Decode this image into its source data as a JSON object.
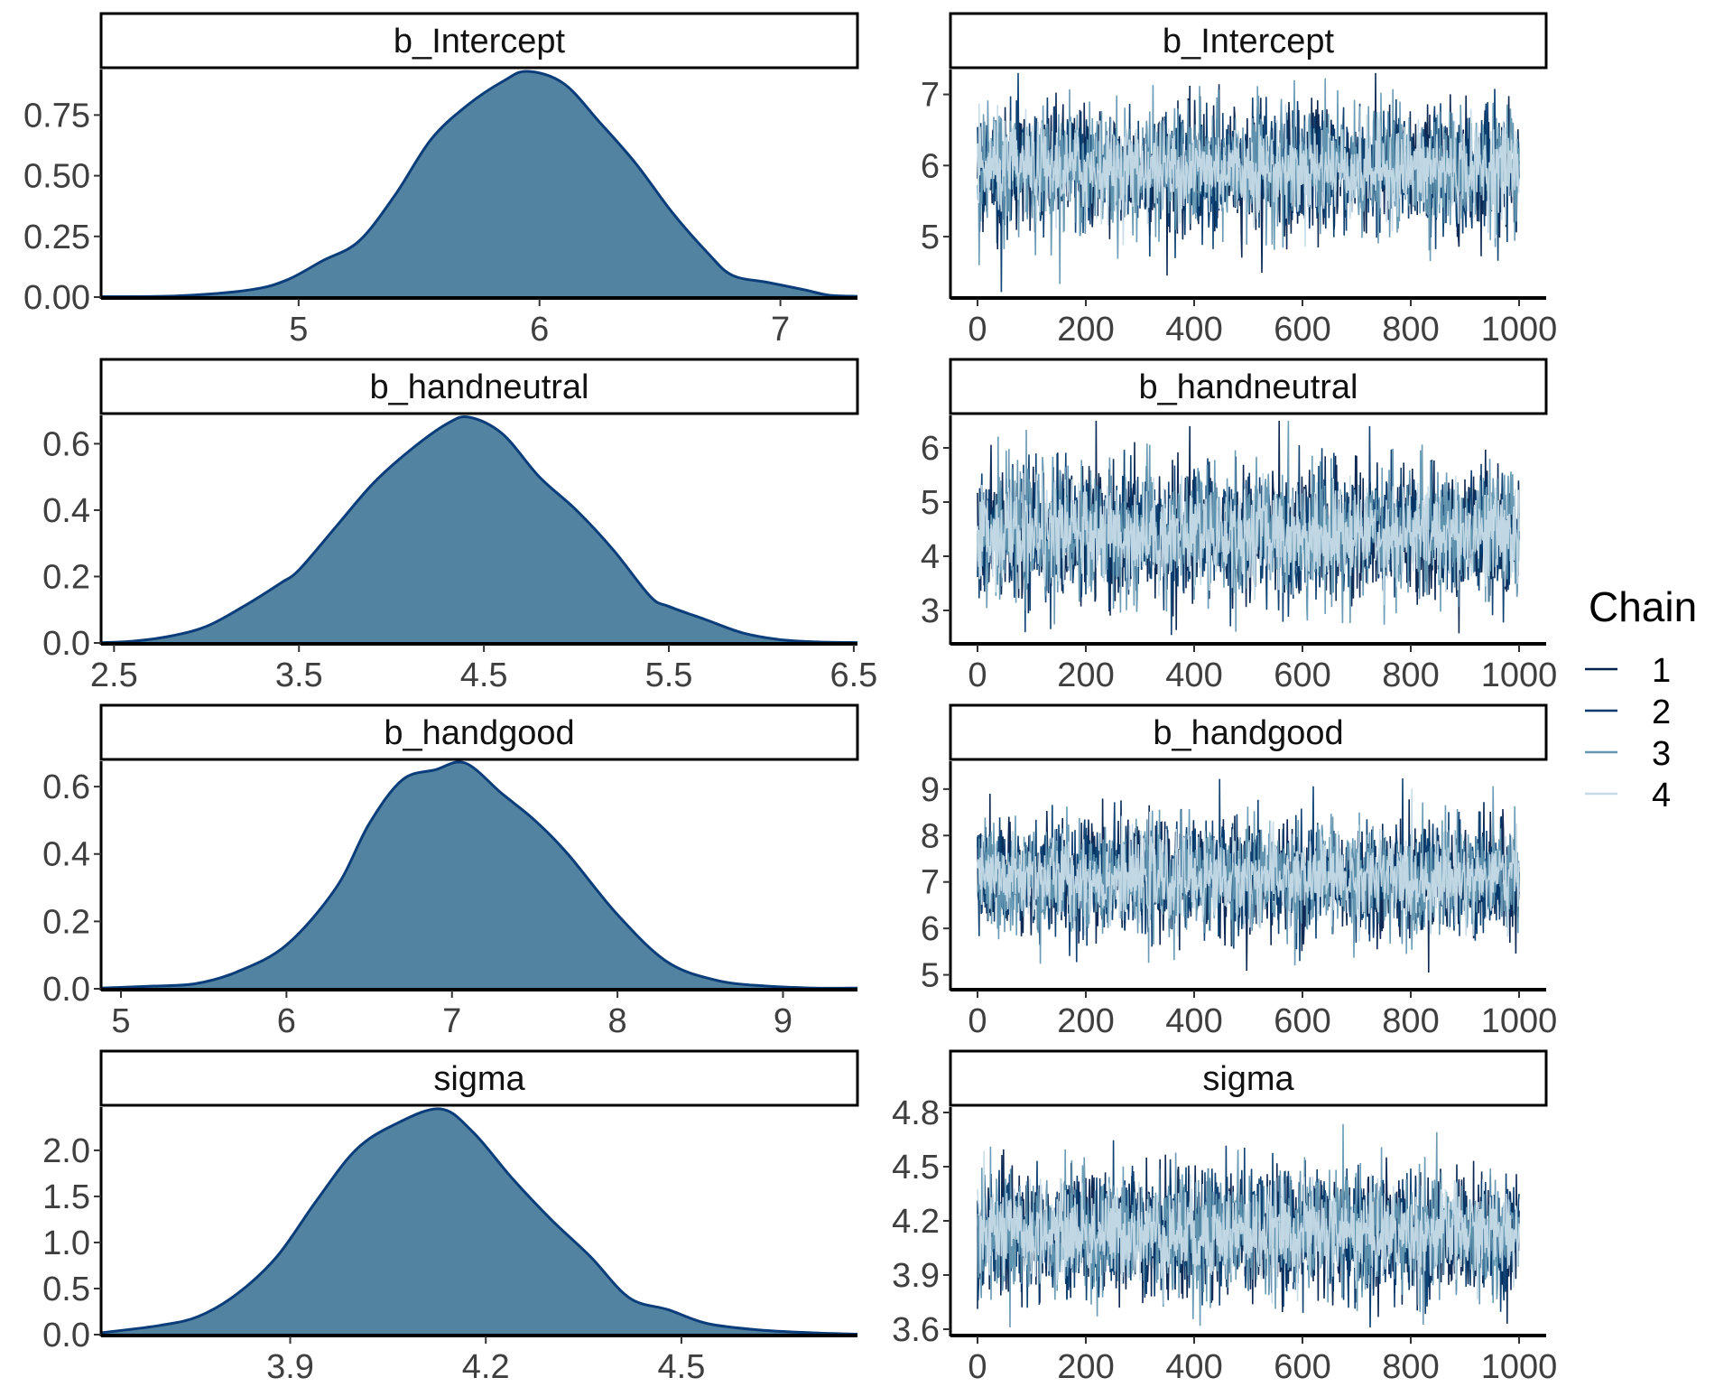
{
  "chart_data": {
    "type": "mcmc-diagnostics",
    "description": "Posterior density plots (left) and MCMC trace plots (right) for 4 parameters",
    "legend": {
      "title": "Chain",
      "placement": "right",
      "entries": [
        {
          "label": "1",
          "color": "#011f4b"
        },
        {
          "label": "2",
          "color": "#03396c"
        },
        {
          "label": "3",
          "color": "#6497b1"
        },
        {
          "label": "4",
          "color": "#c6dbe7"
        }
      ]
    },
    "density_fill": "#5283a1",
    "density_line": "#0b3d7a",
    "panels": [
      {
        "parameter": "b_Intercept",
        "density": {
          "xlim": [
            4.18,
            7.32
          ],
          "ylim": [
            0,
            0.93
          ],
          "xticks": [
            "5",
            "6",
            "7"
          ],
          "xtick_values": [
            5,
            6,
            7
          ],
          "yticks": [
            "0.00",
            "0.25",
            "0.50",
            "0.75"
          ],
          "ytick_values": [
            0,
            0.25,
            0.5,
            0.75
          ],
          "mode": 5.95,
          "peak_density": 0.93,
          "curve": [
            [
              4.18,
              0.002
            ],
            [
              4.5,
              0.005
            ],
            [
              4.8,
              0.03
            ],
            [
              4.95,
              0.07
            ],
            [
              5.1,
              0.15
            ],
            [
              5.25,
              0.23
            ],
            [
              5.4,
              0.42
            ],
            [
              5.55,
              0.65
            ],
            [
              5.7,
              0.79
            ],
            [
              5.85,
              0.89
            ],
            [
              5.95,
              0.93
            ],
            [
              6.1,
              0.88
            ],
            [
              6.25,
              0.72
            ],
            [
              6.4,
              0.55
            ],
            [
              6.55,
              0.35
            ],
            [
              6.7,
              0.18
            ],
            [
              6.8,
              0.09
            ],
            [
              6.95,
              0.06
            ],
            [
              7.1,
              0.03
            ],
            [
              7.2,
              0.008
            ],
            [
              7.32,
              0.003
            ]
          ]
        },
        "trace": {
          "xlim": [
            -50,
            1050
          ],
          "ylim": [
            4.15,
            7.35
          ],
          "xticks": [
            "0",
            "200",
            "400",
            "600",
            "800",
            "1000"
          ],
          "xtick_values": [
            0,
            200,
            400,
            600,
            800,
            1000
          ],
          "yticks": [
            "5",
            "6",
            "7"
          ],
          "ytick_values": [
            5,
            6,
            7
          ],
          "iterations": 1000,
          "center": 5.95,
          "sd": 0.43,
          "min": 4.2,
          "max": 7.3
        }
      },
      {
        "parameter": "b_handneutral",
        "density": {
          "xlim": [
            2.43,
            6.52
          ],
          "ylim": [
            0,
            0.68
          ],
          "xticks": [
            "2.5",
            "3.5",
            "4.5",
            "5.5",
            "6.5"
          ],
          "xtick_values": [
            2.5,
            3.5,
            4.5,
            5.5,
            6.5
          ],
          "yticks": [
            "0.0",
            "0.2",
            "0.4",
            "0.6"
          ],
          "ytick_values": [
            0,
            0.2,
            0.4,
            0.6
          ],
          "mode": 4.42,
          "peak_density": 0.68,
          "curve": [
            [
              2.43,
              0.001
            ],
            [
              2.6,
              0.005
            ],
            [
              2.8,
              0.02
            ],
            [
              3.0,
              0.05
            ],
            [
              3.2,
              0.11
            ],
            [
              3.4,
              0.18
            ],
            [
              3.5,
              0.22
            ],
            [
              3.7,
              0.35
            ],
            [
              3.9,
              0.48
            ],
            [
              4.1,
              0.58
            ],
            [
              4.3,
              0.66
            ],
            [
              4.42,
              0.68
            ],
            [
              4.6,
              0.63
            ],
            [
              4.8,
              0.5
            ],
            [
              5.0,
              0.4
            ],
            [
              5.2,
              0.28
            ],
            [
              5.4,
              0.14
            ],
            [
              5.5,
              0.11
            ],
            [
              5.7,
              0.07
            ],
            [
              5.9,
              0.03
            ],
            [
              6.1,
              0.01
            ],
            [
              6.3,
              0.003
            ],
            [
              6.52,
              0.001
            ]
          ]
        },
        "trace": {
          "xlim": [
            -50,
            1050
          ],
          "ylim": [
            2.4,
            6.6
          ],
          "xticks": [
            "0",
            "200",
            "400",
            "600",
            "800",
            "1000"
          ],
          "xtick_values": [
            0,
            200,
            400,
            600,
            800,
            1000
          ],
          "yticks": [
            "3",
            "4",
            "5",
            "6"
          ],
          "ytick_values": [
            3,
            4,
            5,
            6
          ],
          "iterations": 1000,
          "center": 4.42,
          "sd": 0.6,
          "min": 2.4,
          "max": 6.5
        }
      },
      {
        "parameter": "b_handgood",
        "density": {
          "xlim": [
            4.88,
            9.45
          ],
          "ylim": [
            0,
            0.67
          ],
          "xticks": [
            "5",
            "6",
            "7",
            "8",
            "9"
          ],
          "xtick_values": [
            5,
            6,
            7,
            8,
            9
          ],
          "yticks": [
            "0.0",
            "0.2",
            "0.4",
            "0.6"
          ],
          "ytick_values": [
            0,
            0.2,
            0.4,
            0.6
          ],
          "mode": 7.08,
          "peak_density": 0.67,
          "curve": [
            [
              4.88,
              0.002
            ],
            [
              5.2,
              0.008
            ],
            [
              5.45,
              0.015
            ],
            [
              5.7,
              0.05
            ],
            [
              6.0,
              0.13
            ],
            [
              6.3,
              0.3
            ],
            [
              6.5,
              0.49
            ],
            [
              6.7,
              0.62
            ],
            [
              6.9,
              0.65
            ],
            [
              7.08,
              0.67
            ],
            [
              7.3,
              0.58
            ],
            [
              7.5,
              0.5
            ],
            [
              7.7,
              0.4
            ],
            [
              8.0,
              0.22
            ],
            [
              8.3,
              0.08
            ],
            [
              8.6,
              0.025
            ],
            [
              8.9,
              0.008
            ],
            [
              9.2,
              0.002
            ],
            [
              9.45,
              0.002
            ]
          ]
        },
        "trace": {
          "xlim": [
            -50,
            1050
          ],
          "ylim": [
            4.7,
            9.6
          ],
          "xticks": [
            "0",
            "200",
            "400",
            "600",
            "800",
            "1000"
          ],
          "xtick_values": [
            0,
            200,
            400,
            600,
            800,
            1000
          ],
          "yticks": [
            "5",
            "6",
            "7",
            "8",
            "9"
          ],
          "ytick_values": [
            5,
            6,
            7,
            8,
            9
          ],
          "iterations": 1000,
          "center": 7.08,
          "sd": 0.6,
          "min": 4.85,
          "max": 9.4
        }
      },
      {
        "parameter": "sigma",
        "density": {
          "xlim": [
            3.61,
            4.77
          ],
          "ylim": [
            0,
            2.45
          ],
          "xticks": [
            "3.9",
            "4.2",
            "4.5"
          ],
          "xtick_values": [
            3.9,
            4.2,
            4.5
          ],
          "yticks": [
            "0.0",
            "0.5",
            "1.0",
            "1.5",
            "2.0"
          ],
          "ytick_values": [
            0,
            0.5,
            1.0,
            1.5,
            2.0
          ],
          "mode": 4.13,
          "peak_density": 2.45,
          "curve": [
            [
              3.61,
              0.02
            ],
            [
              3.7,
              0.1
            ],
            [
              3.76,
              0.2
            ],
            [
              3.82,
              0.45
            ],
            [
              3.88,
              0.85
            ],
            [
              3.94,
              1.45
            ],
            [
              4.0,
              2.0
            ],
            [
              4.06,
              2.28
            ],
            [
              4.13,
              2.45
            ],
            [
              4.18,
              2.2
            ],
            [
              4.24,
              1.7
            ],
            [
              4.3,
              1.25
            ],
            [
              4.36,
              0.85
            ],
            [
              4.42,
              0.4
            ],
            [
              4.48,
              0.27
            ],
            [
              4.54,
              0.12
            ],
            [
              4.62,
              0.05
            ],
            [
              4.7,
              0.02
            ],
            [
              4.77,
              0.005
            ]
          ]
        },
        "trace": {
          "xlim": [
            -50,
            1050
          ],
          "ylim": [
            3.57,
            4.83
          ],
          "xticks": [
            "0",
            "200",
            "400",
            "600",
            "800",
            "1000"
          ],
          "xtick_values": [
            0,
            200,
            400,
            600,
            800,
            1000
          ],
          "yticks": [
            "3.6",
            "3.9",
            "4.2",
            "4.5",
            "4.8"
          ],
          "ytick_values": [
            3.6,
            3.9,
            4.2,
            4.5,
            4.8
          ],
          "iterations": 1000,
          "center": 4.13,
          "sd": 0.17,
          "min": 3.61,
          "max": 4.77
        }
      }
    ]
  }
}
